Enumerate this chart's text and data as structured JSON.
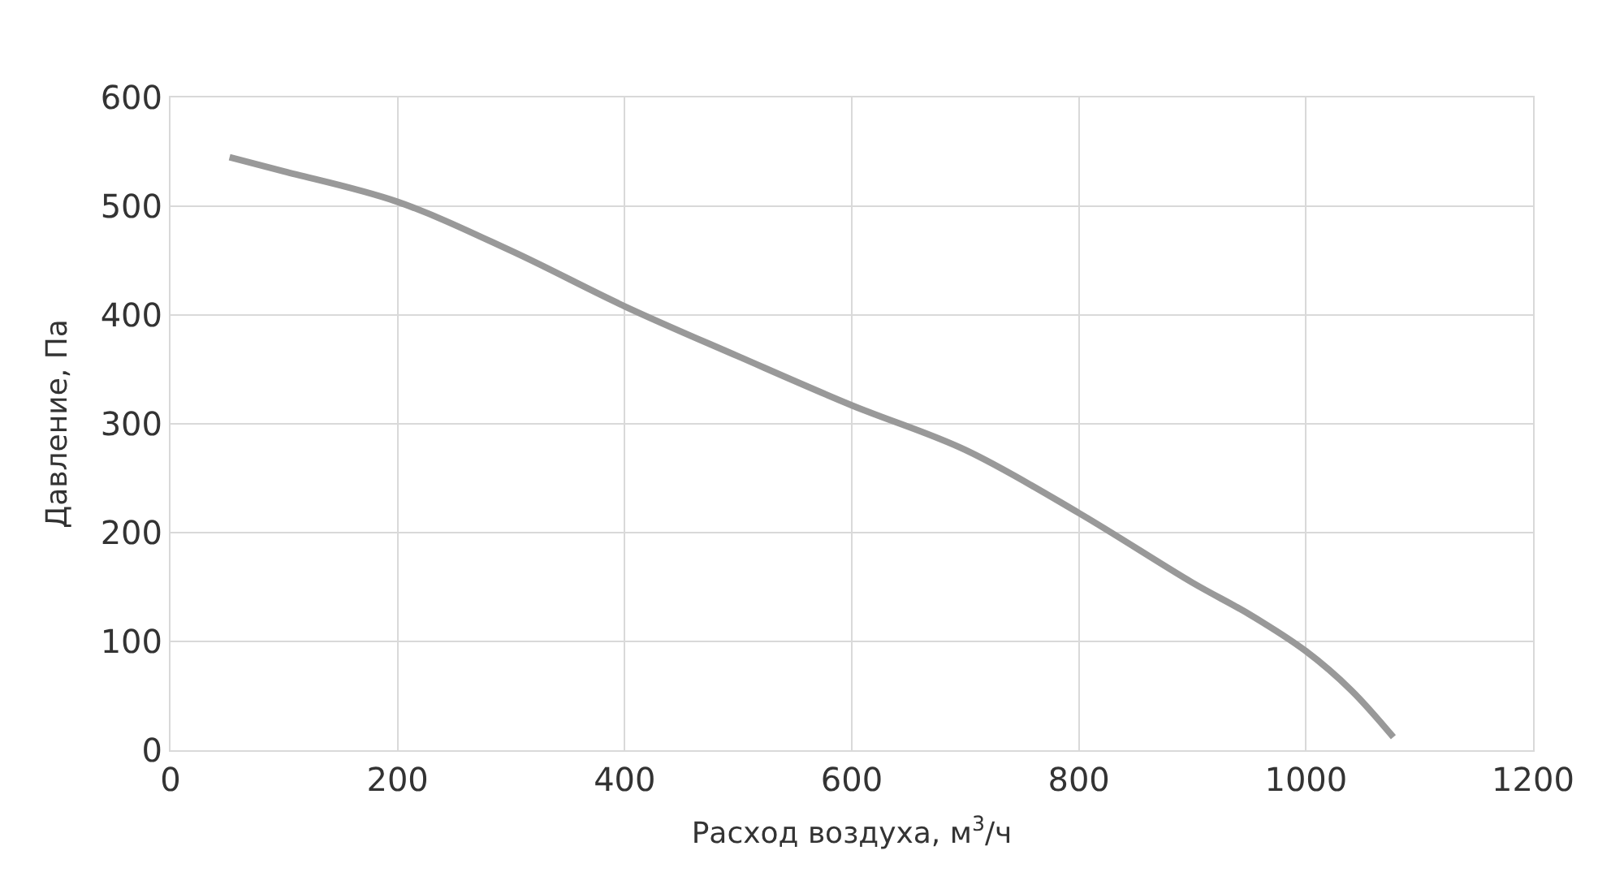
{
  "chart_data": {
    "type": "line",
    "xlabel": "Расход воздуха, м$^{3}$/ч",
    "ylabel": "Давление, Па",
    "x": [
      52,
      100,
      200,
      300,
      400,
      500,
      600,
      700,
      800,
      900,
      950,
      1000,
      1040,
      1077
    ],
    "series": [
      {
        "color": "#999999",
        "values": [
          545,
          532,
          504,
          459,
          408,
          362,
          317,
          276,
          218,
          154,
          125,
          91,
          55,
          12
        ]
      }
    ],
    "xlim": [
      0,
      1200
    ],
    "xticks": [
      0,
      200,
      400,
      600,
      800,
      1000,
      1200
    ],
    "ylim": [
      0,
      600
    ],
    "yticks": [
      0,
      100,
      200,
      300,
      400,
      500,
      600
    ],
    "grid": true,
    "legend": false,
    "marker": "none",
    "line_style": "solid"
  }
}
